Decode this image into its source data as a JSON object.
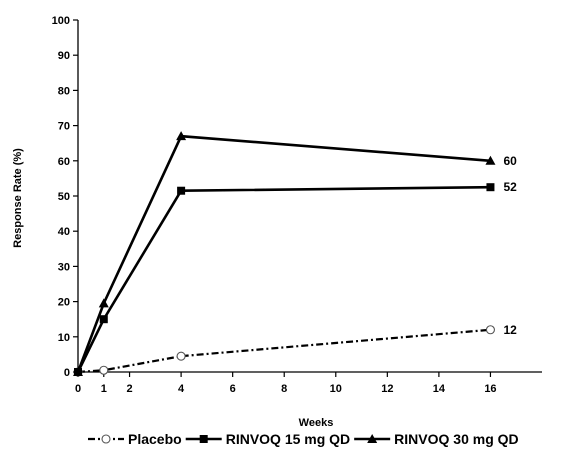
{
  "chart_data": {
    "type": "line",
    "xlabel": "Weeks",
    "ylabel": "Response Rate (%)",
    "xlim": [
      0,
      18
    ],
    "ylim": [
      0,
      100
    ],
    "x_ticks": [
      0,
      1,
      2,
      4,
      6,
      8,
      10,
      12,
      14,
      16
    ],
    "y_ticks": [
      0,
      10,
      20,
      30,
      40,
      50,
      60,
      70,
      80,
      90,
      100
    ],
    "grid": false,
    "legend_position": "bottom",
    "series": [
      {
        "name": "Placebo",
        "marker": "open-circle",
        "line_style": "dash-dot",
        "color": "#000000",
        "x": [
          0,
          1,
          4,
          16
        ],
        "y": [
          0,
          0.5,
          4.5,
          12
        ],
        "end_label": "12"
      },
      {
        "name": "RINVOQ 15 mg QD",
        "marker": "square",
        "line_style": "solid",
        "color": "#000000",
        "x": [
          0,
          1,
          4,
          16
        ],
        "y": [
          0,
          15,
          51.5,
          52.5
        ],
        "end_label": "52"
      },
      {
        "name": "RINVOQ 30 mg QD",
        "marker": "triangle",
        "line_style": "solid",
        "color": "#000000",
        "x": [
          0,
          1,
          4,
          16
        ],
        "y": [
          0,
          19.5,
          67,
          60
        ],
        "end_label": "60"
      }
    ]
  }
}
